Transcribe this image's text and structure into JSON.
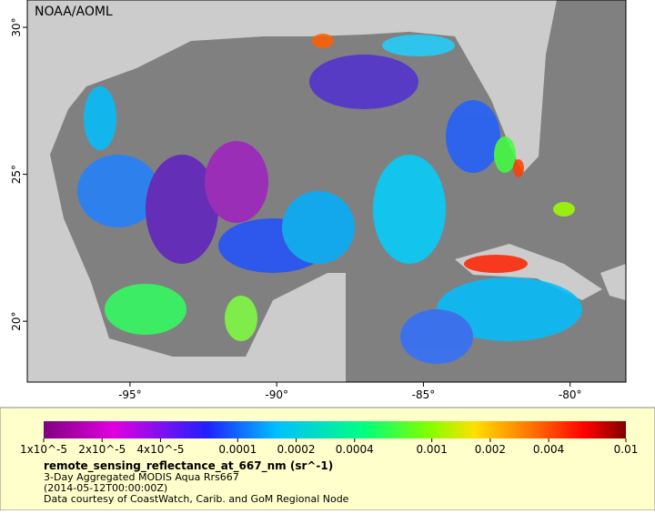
{
  "map": {
    "credit": "NOAA/AOML",
    "x_axis": {
      "lim": [
        -98.5,
        -78.1
      ],
      "ticks": [
        {
          "value": -95,
          "label": "-95°"
        },
        {
          "value": -90,
          "label": "-90°"
        },
        {
          "value": -85,
          "label": "-85°"
        },
        {
          "value": -80,
          "label": "-80°"
        }
      ]
    },
    "y_axis": {
      "lim": [
        17.93,
        30.93
      ],
      "ticks": [
        {
          "value": 20,
          "label": "20°"
        },
        {
          "value": 25,
          "label": "25°"
        },
        {
          "value": 30,
          "label": "30°"
        }
      ]
    }
  },
  "legend": {
    "scale": "log",
    "lim": [
      1e-05,
      0.01
    ],
    "ticks": [
      {
        "value": 1e-05,
        "label": "1x10^-5"
      },
      {
        "value": 2e-05,
        "label": "2x10^-5"
      },
      {
        "value": 4e-05,
        "label": "4x10^-5"
      },
      0.0001,
      0.0002,
      0.0004,
      0.001,
      0.002,
      0.004,
      0.01
    ],
    "variable": "remote_sensing_reflectance_at_667_nm (sr^-1)",
    "lines": [
      "3-Day Aggregated MODIS Aqua Rrs667",
      "(2014-05-12T00:00:00Z)",
      "Data courtesy of CoastWatch, Carib. and GoM Regional Node"
    ]
  }
}
